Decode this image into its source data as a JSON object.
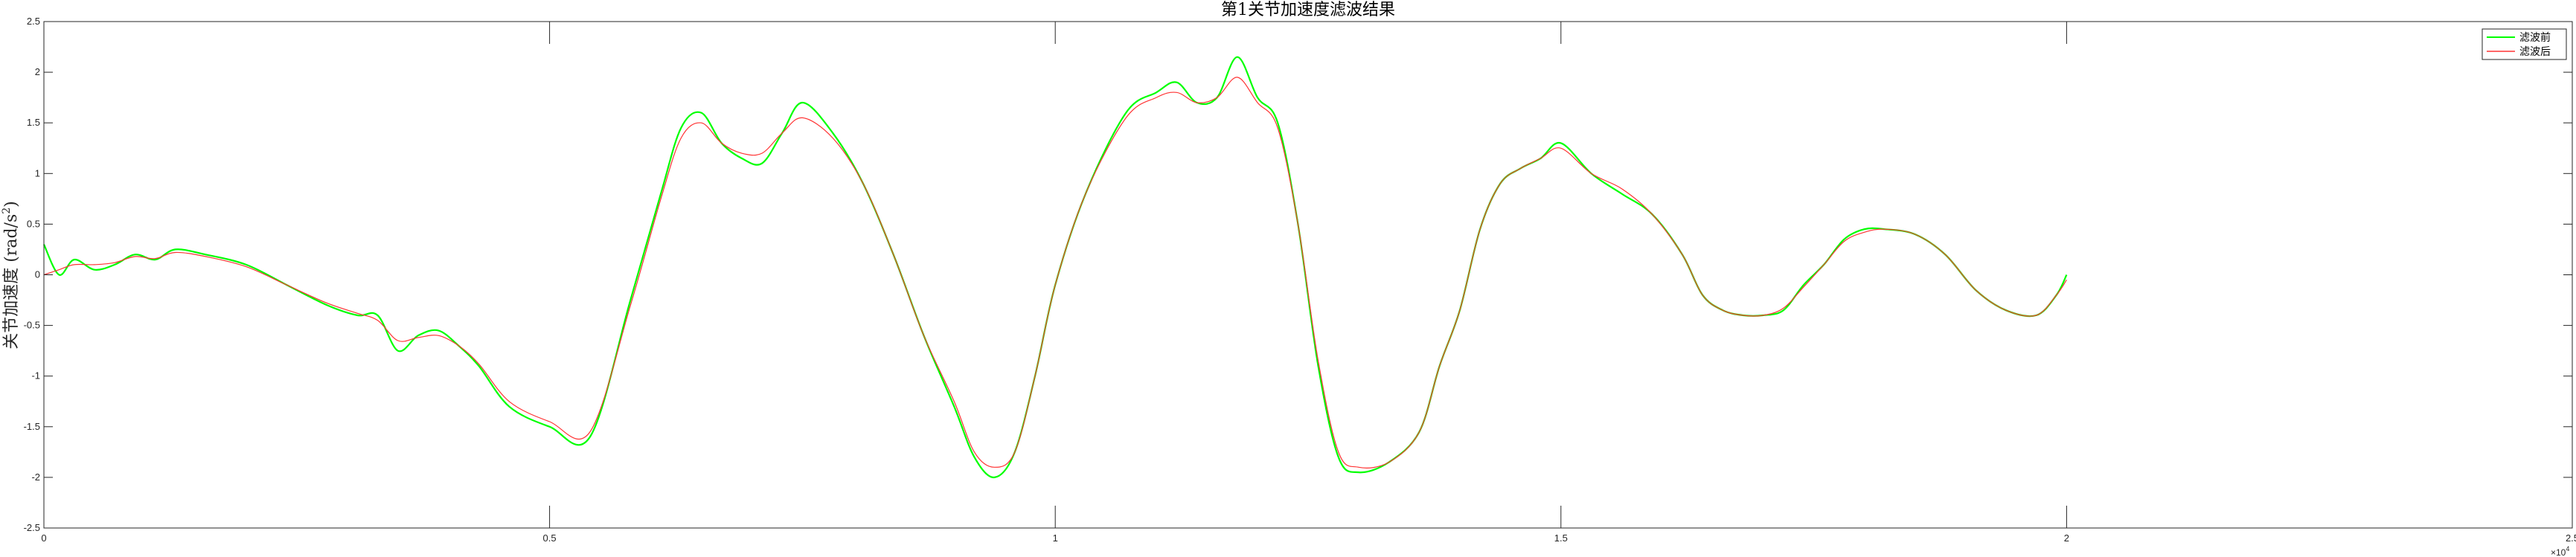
{
  "chart_data": {
    "type": "line",
    "title": "第1关节加速度滤波结果",
    "ylabel": "关节加速度 (rad/s",
    "ylabel_sup": "2",
    "ylabel_close": ")",
    "xlabel": "",
    "xlim": [
      0,
      25000
    ],
    "ylim": [
      -2.5,
      2.5
    ],
    "x_multiplier": "×10",
    "x_multiplier_exp": "4",
    "xticks": [
      0,
      5000,
      10000,
      15000,
      20000,
      25000
    ],
    "xtick_labels": [
      "0",
      "0.5",
      "1",
      "1.5",
      "2",
      "2.5"
    ],
    "yticks": [
      -2.5,
      -2,
      -1.5,
      -1,
      -0.5,
      0,
      0.5,
      1,
      1.5,
      2,
      2.5
    ],
    "ytick_labels": [
      "-2.5",
      "-2",
      "-1.5",
      "-1",
      "-0.5",
      "0",
      "0.5",
      "1",
      "1.5",
      "2",
      "2.5"
    ],
    "grid": false,
    "legend_position": "top-right",
    "series": [
      {
        "name": "滤波前",
        "color": "#00ff00",
        "x": [
          0,
          150,
          300,
          500,
          700,
          900,
          1100,
          1300,
          1600,
          2000,
          2400,
          2800,
          3100,
          3300,
          3500,
          3700,
          3900,
          4100,
          4300,
          4600,
          5000,
          5400,
          5800,
          6100,
          6300,
          6500,
          6700,
          6900,
          7100,
          7300,
          7500,
          7800,
          8100,
          8400,
          8700,
          9000,
          9200,
          9400,
          9600,
          9800,
          10000,
          10300,
          10700,
          11000,
          11200,
          11400,
          11600,
          11800,
          12000,
          12200,
          12400,
          12600,
          12800,
          13000,
          13300,
          13600,
          13800,
          14000,
          14200,
          14400,
          14600,
          14800,
          15000,
          15300,
          15600,
          15900,
          16200,
          16400,
          16600,
          16800,
          17000,
          17200,
          17400,
          17600,
          17800,
          18000,
          18200,
          18500,
          18800,
          19100,
          19400,
          19700,
          19900,
          20000
        ],
        "y": [
          0.3,
          0.0,
          0.15,
          0.05,
          0.1,
          0.2,
          0.15,
          0.25,
          0.2,
          0.1,
          -0.1,
          -0.3,
          -0.4,
          -0.4,
          -0.75,
          -0.6,
          -0.55,
          -0.7,
          -0.9,
          -1.3,
          -1.5,
          -1.6,
          -0.25,
          0.8,
          1.45,
          1.6,
          1.3,
          1.15,
          1.1,
          1.4,
          1.7,
          1.4,
          0.9,
          0.2,
          -0.6,
          -1.3,
          -1.8,
          -2.0,
          -1.75,
          -1.0,
          -0.1,
          0.8,
          1.6,
          1.8,
          1.9,
          1.7,
          1.75,
          2.15,
          1.75,
          1.5,
          0.5,
          -0.9,
          -1.8,
          -1.95,
          -1.85,
          -1.55,
          -0.9,
          -0.35,
          0.45,
          0.9,
          1.05,
          1.15,
          1.3,
          1.0,
          0.8,
          0.6,
          0.2,
          -0.2,
          -0.35,
          -0.4,
          -0.4,
          -0.35,
          -0.1,
          0.1,
          0.35,
          0.45,
          0.45,
          0.4,
          0.2,
          -0.15,
          -0.35,
          -0.4,
          -0.2,
          0.0
        ]
      },
      {
        "name": "滤波后",
        "color": "#ff3333",
        "x": [
          0,
          150,
          300,
          500,
          700,
          900,
          1100,
          1300,
          1600,
          2000,
          2400,
          2800,
          3100,
          3300,
          3500,
          3700,
          3900,
          4100,
          4300,
          4600,
          5000,
          5400,
          5800,
          6100,
          6300,
          6500,
          6700,
          6900,
          7100,
          7300,
          7500,
          7800,
          8100,
          8400,
          8700,
          9000,
          9200,
          9400,
          9600,
          9800,
          10000,
          10300,
          10700,
          11000,
          11200,
          11400,
          11600,
          11800,
          12000,
          12200,
          12400,
          12600,
          12800,
          13000,
          13300,
          13600,
          13800,
          14000,
          14200,
          14400,
          14600,
          14800,
          15000,
          15300,
          15600,
          15900,
          16200,
          16400,
          16600,
          16800,
          17000,
          17200,
          17400,
          17600,
          17800,
          18000,
          18200,
          18500,
          18800,
          19100,
          19400,
          19700,
          19900,
          20000
        ],
        "y": [
          0.0,
          0.05,
          0.1,
          0.1,
          0.12,
          0.18,
          0.16,
          0.22,
          0.18,
          0.08,
          -0.1,
          -0.28,
          -0.38,
          -0.45,
          -0.65,
          -0.62,
          -0.6,
          -0.7,
          -0.88,
          -1.25,
          -1.45,
          -1.55,
          -0.3,
          0.75,
          1.35,
          1.5,
          1.3,
          1.2,
          1.2,
          1.4,
          1.55,
          1.35,
          0.9,
          0.2,
          -0.6,
          -1.25,
          -1.75,
          -1.9,
          -1.75,
          -1.0,
          -0.1,
          0.8,
          1.55,
          1.75,
          1.8,
          1.7,
          1.75,
          1.95,
          1.7,
          1.45,
          0.5,
          -0.85,
          -1.75,
          -1.9,
          -1.85,
          -1.55,
          -0.9,
          -0.35,
          0.45,
          0.9,
          1.05,
          1.15,
          1.25,
          1.0,
          0.85,
          0.6,
          0.2,
          -0.2,
          -0.35,
          -0.4,
          -0.4,
          -0.33,
          -0.12,
          0.1,
          0.33,
          0.42,
          0.45,
          0.4,
          0.2,
          -0.15,
          -0.35,
          -0.4,
          -0.2,
          -0.05
        ]
      }
    ]
  }
}
